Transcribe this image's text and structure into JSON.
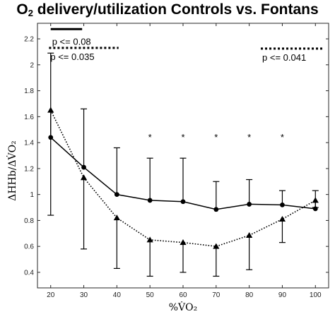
{
  "chart_data": {
    "type": "line",
    "title": {
      "prefix": "O",
      "subscript": "2",
      "rest": " delivery/utilization Controls vs. Fontans"
    },
    "xlabel": "%V̇O₂",
    "ylabel": "ΔHHb/ΔV̇O₂",
    "x": [
      20,
      30,
      40,
      50,
      60,
      70,
      80,
      90,
      100
    ],
    "xlim": [
      16,
      104
    ],
    "ylim": [
      0.28,
      2.32
    ],
    "xticks": [
      20,
      30,
      40,
      50,
      60,
      70,
      80,
      90,
      100
    ],
    "yticks": [
      0.4,
      0.6,
      0.8,
      1.0,
      1.2,
      1.4,
      1.6,
      1.8,
      2.0,
      2.2
    ],
    "ytick_labels": [
      "0.4",
      "0.6",
      "0.8",
      "1",
      "1.2",
      "1.4",
      "1.6",
      "1.8",
      "2",
      "2.2"
    ],
    "grid": false,
    "series": [
      {
        "line": "solid",
        "marker": "circle",
        "values": [
          1.44,
          1.21,
          1.0,
          0.955,
          0.945,
          0.885,
          0.925,
          0.92,
          0.89
        ],
        "error_upper": [
          2.09,
          1.66,
          1.36,
          1.28,
          1.28,
          1.1,
          1.115,
          1.03,
          1.03
        ]
      },
      {
        "line": "dotted",
        "marker": "triangle",
        "values": [
          1.65,
          1.13,
          0.82,
          0.65,
          0.63,
          0.6,
          0.685,
          0.81,
          0.955
        ],
        "error_lower": [
          0.84,
          0.58,
          0.43,
          0.37,
          0.4,
          0.37,
          0.42,
          0.63,
          0.9
        ]
      }
    ],
    "significance": {
      "marker": "*",
      "x": [
        50,
        60,
        70,
        80,
        90
      ],
      "y": 1.45
    },
    "annotations": [
      {
        "text": "p <= 0.08",
        "line": "solid",
        "x_start": 20,
        "x_end": 29.5,
        "y_line": 2.275,
        "y_text": 2.18
      },
      {
        "text": "p <= 0.035",
        "line": "dotted",
        "x_start": 19.5,
        "x_end": 40.5,
        "y_line": 2.13,
        "y_text": 2.065
      },
      {
        "text": "p <= 0.041",
        "line": "dotted",
        "x_start": 83.5,
        "x_end": 102.5,
        "y_line": 2.125,
        "y_text": 2.06
      }
    ]
  }
}
